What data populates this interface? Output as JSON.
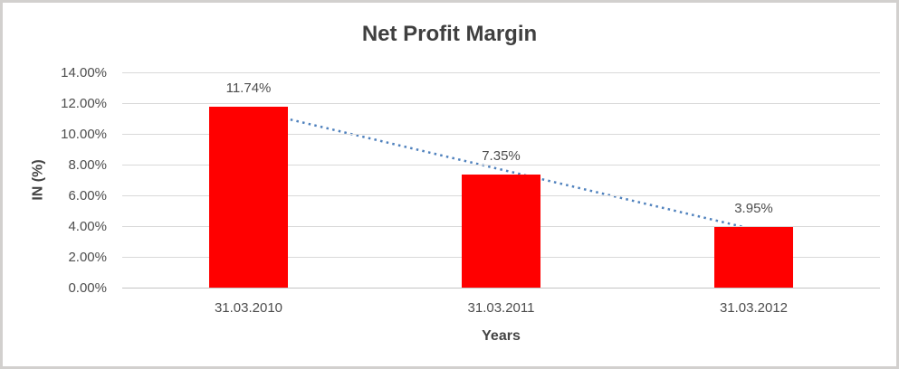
{
  "frame": {
    "background": "#ffffff",
    "border_color": "#d2d0ce"
  },
  "chart_data": {
    "type": "bar",
    "title": "Net Profit Margin",
    "xlabel": "Years",
    "ylabel": "IN (%)",
    "categories": [
      "31.03.2010",
      "31.03.2011",
      "31.03.2012"
    ],
    "values": [
      11.74,
      7.35,
      3.95
    ],
    "value_labels": [
      "11.74%",
      "7.35%",
      "3.95%"
    ],
    "ylim": [
      0,
      14
    ],
    "yticks": [
      0,
      2,
      4,
      6,
      8,
      10,
      12,
      14
    ],
    "ytick_labels": [
      "0.00%",
      "2.00%",
      "4.00%",
      "6.00%",
      "8.00%",
      "10.00%",
      "12.00%",
      "14.00%"
    ],
    "grid": true,
    "legend": "none",
    "trendline": {
      "type": "linear",
      "style": "dotted"
    },
    "colors": {
      "bar": "#ff0000",
      "trendline": "#4f81bd",
      "gridline": "#d9d9d9",
      "axis_line": "#c3c3c3",
      "title_text": "#3f3f3f",
      "label_text": "#4d4d4d"
    }
  }
}
